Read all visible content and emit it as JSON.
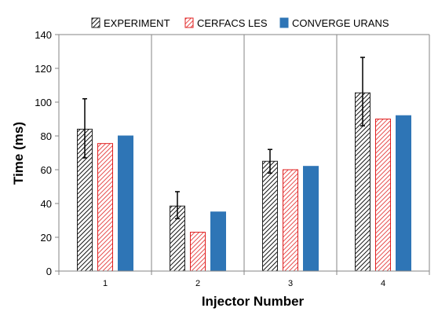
{
  "chart_data": {
    "type": "bar",
    "title": "",
    "xlabel": "Injector Number",
    "ylabel": "Time (ms)",
    "categories": [
      "1",
      "2",
      "3",
      "4"
    ],
    "ylim": [
      0,
      140
    ],
    "yticks": [
      0,
      20,
      40,
      60,
      80,
      100,
      120,
      140
    ],
    "grid": "vertical category separators",
    "legend_position": "top",
    "series": [
      {
        "name": "EXPERIMENT",
        "values": [
          84,
          38.5,
          65,
          105.5
        ],
        "error_bars": [
          [
            67,
            102
          ],
          [
            31,
            47
          ],
          [
            58,
            72
          ],
          [
            86,
            126.5
          ]
        ],
        "fill_style": "hatch-black",
        "color": "#222222"
      },
      {
        "name": "CERFACS LES",
        "values": [
          75.5,
          23,
          60,
          90
        ],
        "fill_style": "hatch-red",
        "color": "#e02020"
      },
      {
        "name": "CONVERGE URANS",
        "values": [
          80,
          35,
          62,
          92
        ],
        "fill_style": "solid",
        "color": "#2e75b6"
      }
    ]
  }
}
